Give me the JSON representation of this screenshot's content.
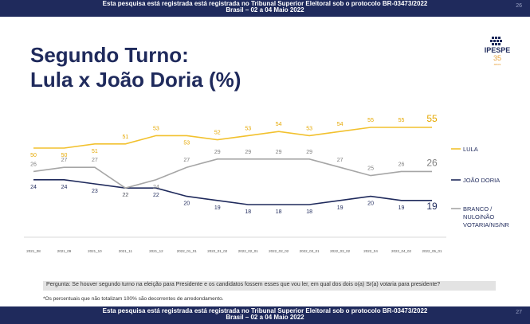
{
  "header": {
    "line1": "Esta pesquisa está registrada está registrada no Tribunal Superior Eleitoral sob o protocolo BR-03473/2022",
    "line2": "Brasil – 02 a 04 Maio 2022",
    "page_number": "26"
  },
  "footer": {
    "line1": "Esta pesquisa está registrada está registrada no Tribunal Superior Eleitoral sob o protocolo BR-03473/2022",
    "line2": "Brasil – 02 a 04 Maio 2022",
    "page_number": "27"
  },
  "title": {
    "line1": "Segundo Turno:",
    "line2": "Lula x João Doria (%)"
  },
  "logo": {
    "name": "IPESPE",
    "years": "35",
    "subtitle": "anos"
  },
  "question": "Pergunta:  Se houver segundo turno na eleição para Presidente e os candidatos fossem esses que vou ler, em qual dos dois o(a) Sr(a) votaria para presidente?",
  "note": "*Os percentuais que não totalizam 100% são decorrentes de arredondamento.",
  "colors": {
    "lula": "#f2c12e",
    "doria": "#1f2a5c",
    "branco": "#a6a6a6",
    "navy": "#1f2a5c"
  },
  "chart_data": {
    "type": "line",
    "categories": [
      "2021_08",
      "2021_09",
      "2021_10",
      "2021_11",
      "2021_12",
      "2022_01_01",
      "2022_01_02",
      "2022_02_01",
      "2022_02_02",
      "2022_03_01",
      "2022_03_02",
      "2022_04",
      "2022_04_02",
      "2022_05_01"
    ],
    "x_positions": [
      0,
      1,
      2,
      3,
      4,
      5,
      6,
      7,
      8,
      9,
      10,
      11,
      12,
      13
    ],
    "series": [
      {
        "name": "LULA",
        "values": [
          50,
          50,
          51,
          51,
          53,
          53,
          52,
          53,
          54,
          53,
          54,
          55,
          55,
          55
        ]
      },
      {
        "name": "JOÃO DORIA",
        "values": [
          24,
          24,
          23,
          22,
          22,
          20,
          19,
          18,
          18,
          18,
          19,
          20,
          19,
          19
        ]
      },
      {
        "name": "BRANCO / NULO/NÃO VOTARIA/NS/NR",
        "values": [
          26,
          27,
          27,
          22,
          24,
          27,
          29,
          29,
          29,
          29,
          27,
          25,
          26,
          26
        ]
      }
    ],
    "legend_labels": [
      "LULA",
      "JOÃO DORIA",
      "BRANCO /",
      "NULO/NÃO",
      "VOTARIA/NS/NR"
    ],
    "legend_position": "right",
    "grid": false
  }
}
